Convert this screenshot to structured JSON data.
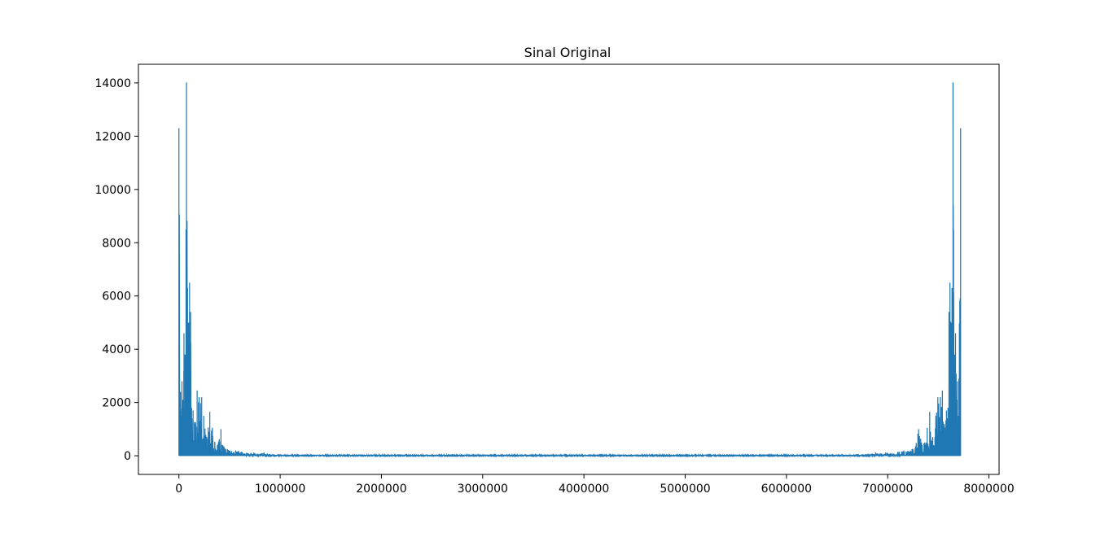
{
  "chart_data": {
    "type": "line",
    "title": "Sinal Original",
    "xlabel": "",
    "ylabel": "",
    "xlim": [
      -400000,
      8100000
    ],
    "ylim": [
      -700,
      14700
    ],
    "x_ticks": [
      0,
      1000000,
      2000000,
      3000000,
      4000000,
      5000000,
      6000000,
      7000000,
      8000000
    ],
    "x_tick_labels": [
      "0",
      "1000000",
      "2000000",
      "3000000",
      "4000000",
      "5000000",
      "6000000",
      "7000000",
      "8000000"
    ],
    "y_ticks": [
      0,
      2000,
      4000,
      6000,
      8000,
      10000,
      12000,
      14000
    ],
    "y_tick_labels": [
      "0",
      "2000",
      "4000",
      "6000",
      "8000",
      "10000",
      "12000",
      "14000"
    ],
    "grid": false,
    "series": [
      {
        "color": "#1f77b4",
        "x_max": 7720000,
        "peaks": [
          [
            0,
            12300
          ],
          [
            20000,
            1500
          ],
          [
            30000,
            2800
          ],
          [
            40000,
            2100
          ],
          [
            50000,
            4600
          ],
          [
            60000,
            3800
          ],
          [
            70000,
            8500
          ],
          [
            75000,
            14020
          ],
          [
            85000,
            6300
          ],
          [
            95000,
            5000
          ],
          [
            105000,
            6500
          ],
          [
            115000,
            5400
          ],
          [
            125000,
            1800
          ],
          [
            140000,
            1700
          ],
          [
            160000,
            1200
          ],
          [
            180000,
            2450
          ],
          [
            200000,
            2200
          ],
          [
            225000,
            2200
          ],
          [
            245000,
            1500
          ],
          [
            275000,
            700
          ],
          [
            305000,
            1650
          ],
          [
            330000,
            1050
          ],
          [
            355000,
            500
          ],
          [
            380000,
            400
          ],
          [
            415000,
            1000
          ],
          [
            445000,
            350
          ],
          [
            480000,
            250
          ],
          [
            520000,
            180
          ],
          [
            560000,
            200
          ],
          [
            620000,
            150
          ],
          [
            680000,
            100
          ],
          [
            740000,
            130
          ],
          [
            800000,
            80
          ],
          [
            840000,
            130
          ],
          [
            900000,
            60
          ]
        ]
      }
    ]
  }
}
